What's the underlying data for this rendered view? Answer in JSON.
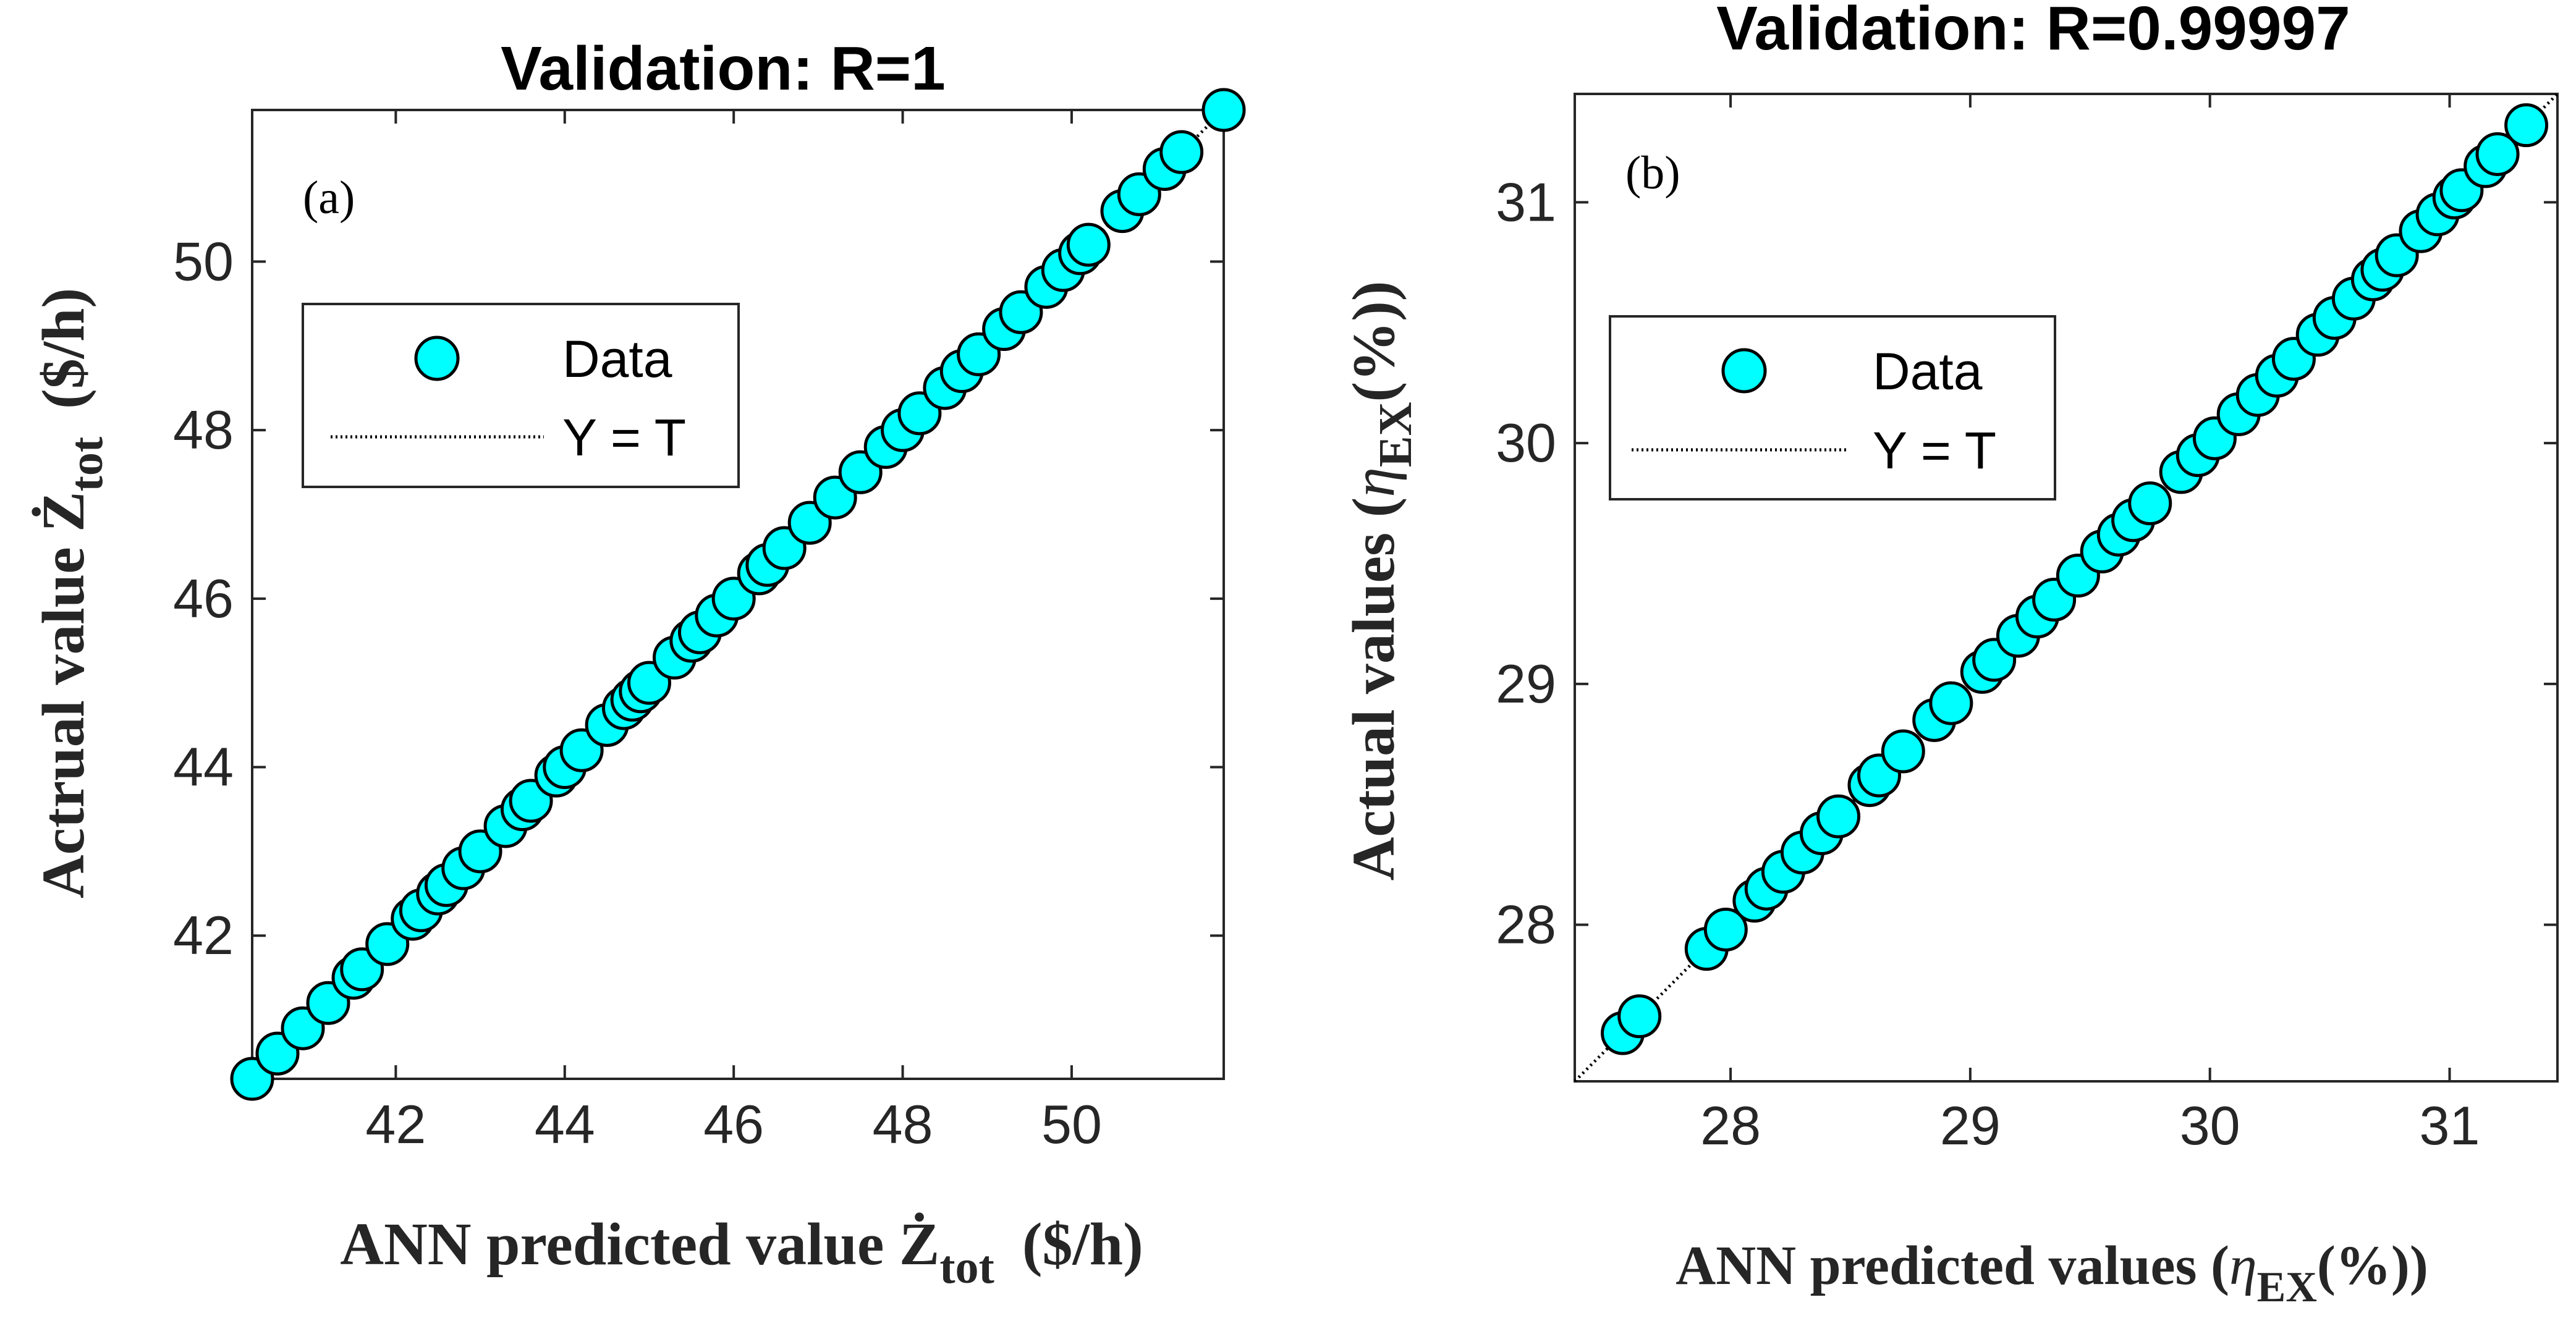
{
  "chart_data": [
    {
      "type": "scatter",
      "panel": "(a)",
      "title": "Validation: R=1",
      "xlabel": {
        "main": "ANN predicted value Ż",
        "sub": "tot",
        "unit": "($/h)"
      },
      "ylabel": {
        "main": "Actrual value Ż",
        "sub": "tot",
        "unit": "($/h)"
      },
      "xlim": [
        40.3,
        51.8
      ],
      "ylim": [
        40.3,
        51.8
      ],
      "xticks": [
        "42",
        "44",
        "46",
        "48",
        "50"
      ],
      "yticks": [
        "42",
        "44",
        "46",
        "48",
        "50"
      ],
      "legend": {
        "data": "Data",
        "fit": "Y = T",
        "placement": "upper-left"
      },
      "x": [
        40.3,
        40.6,
        40.9,
        41.2,
        41.5,
        41.6,
        41.9,
        42.2,
        42.3,
        42.5,
        42.6,
        42.8,
        43.0,
        43.3,
        43.5,
        43.6,
        43.9,
        44.0,
        44.2,
        44.5,
        44.7,
        44.8,
        44.9,
        45.0,
        45.3,
        45.5,
        45.6,
        45.8,
        46.0,
        46.3,
        46.4,
        46.6,
        46.9,
        47.2,
        47.5,
        47.8,
        48.0,
        48.2,
        48.5,
        48.7,
        48.9,
        49.2,
        49.4,
        49.7,
        49.9,
        50.1,
        50.2,
        50.6,
        50.8,
        51.1,
        51.3,
        51.8
      ],
      "y": [
        40.3,
        40.6,
        40.9,
        41.2,
        41.5,
        41.6,
        41.9,
        42.2,
        42.3,
        42.5,
        42.6,
        42.8,
        43.0,
        43.3,
        43.5,
        43.6,
        43.9,
        44.0,
        44.2,
        44.5,
        44.7,
        44.8,
        44.9,
        45.0,
        45.3,
        45.5,
        45.6,
        45.8,
        46.0,
        46.3,
        46.4,
        46.6,
        46.9,
        47.2,
        47.5,
        47.8,
        48.0,
        48.2,
        48.5,
        48.7,
        48.9,
        49.2,
        49.4,
        49.7,
        49.9,
        50.1,
        50.2,
        50.6,
        50.8,
        51.1,
        51.3,
        51.8
      ]
    },
    {
      "type": "scatter",
      "panel": "(b)",
      "title": "Validation: R=0.99997",
      "xlabel": {
        "main": "ANN predicted values (",
        "greek": "η",
        "sub": "EX",
        "unit": "(%))"
      },
      "ylabel": {
        "main": "Actual values (",
        "greek": "η",
        "sub": "EX",
        "unit": "(%))"
      },
      "xlim": [
        27.35,
        31.45
      ],
      "ylim": [
        27.35,
        31.45
      ],
      "xticks": [
        "28",
        "29",
        "30",
        "31"
      ],
      "yticks": [
        "28",
        "29",
        "30",
        "31"
      ],
      "legend": {
        "data": "Data",
        "fit": "Y = T",
        "placement": "upper-left"
      },
      "x": [
        27.55,
        27.62,
        27.9,
        27.98,
        28.1,
        28.15,
        28.22,
        28.3,
        28.38,
        28.45,
        28.58,
        28.62,
        28.72,
        28.85,
        28.92,
        29.05,
        29.1,
        29.2,
        29.28,
        29.35,
        29.45,
        29.55,
        29.62,
        29.68,
        29.75,
        29.88,
        29.95,
        30.02,
        30.12,
        30.2,
        30.28,
        30.35,
        30.45,
        30.52,
        30.6,
        30.68,
        30.72,
        30.78,
        30.88,
        30.95,
        31.02,
        31.05,
        31.15,
        31.2,
        31.32
      ],
      "y": [
        27.55,
        27.62,
        27.9,
        27.98,
        28.1,
        28.15,
        28.22,
        28.3,
        28.38,
        28.45,
        28.58,
        28.62,
        28.72,
        28.85,
        28.92,
        29.05,
        29.1,
        29.2,
        29.28,
        29.35,
        29.45,
        29.55,
        29.62,
        29.68,
        29.75,
        29.88,
        29.95,
        30.02,
        30.12,
        30.2,
        30.28,
        30.35,
        30.45,
        30.52,
        30.6,
        30.68,
        30.72,
        30.78,
        30.88,
        30.95,
        31.02,
        31.05,
        31.15,
        31.2,
        31.32
      ]
    }
  ]
}
